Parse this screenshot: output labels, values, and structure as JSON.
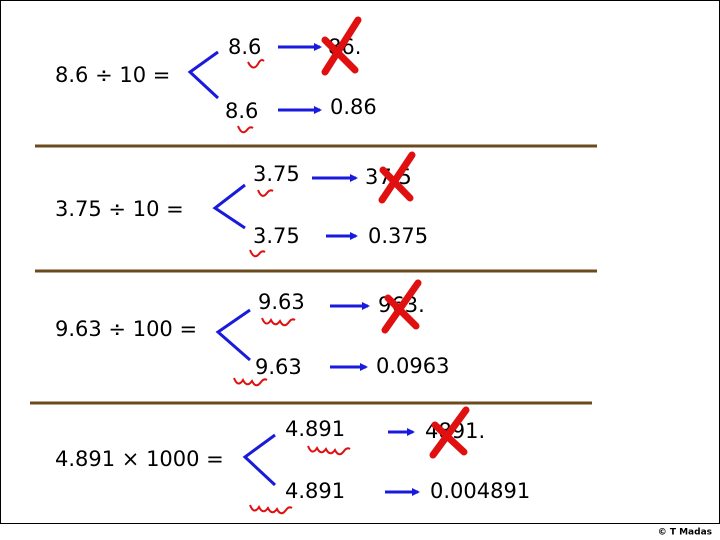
{
  "rows": [
    {
      "expression": "8.6 ÷ 10 =",
      "top": {
        "from": "8.6",
        "to": "86."
      },
      "bottom": {
        "from": "8.6",
        "to": "0.86"
      }
    },
    {
      "expression": "3.75 ÷ 10 =",
      "top": {
        "from": "3.75",
        "to": "37.5"
      },
      "bottom": {
        "from": "3.75",
        "to": "0.375"
      }
    },
    {
      "expression": "9.63 ÷ 100 =",
      "top": {
        "from": "9.63",
        "to": "963."
      },
      "bottom": {
        "from": "9.63",
        "to": "0.0963"
      }
    },
    {
      "expression": "4.891 × 1000 =",
      "top": {
        "from": "4.891",
        "to": "4891."
      },
      "bottom": {
        "from": "4.891",
        "to": "0.004891"
      }
    }
  ],
  "footer": "© T Madas"
}
